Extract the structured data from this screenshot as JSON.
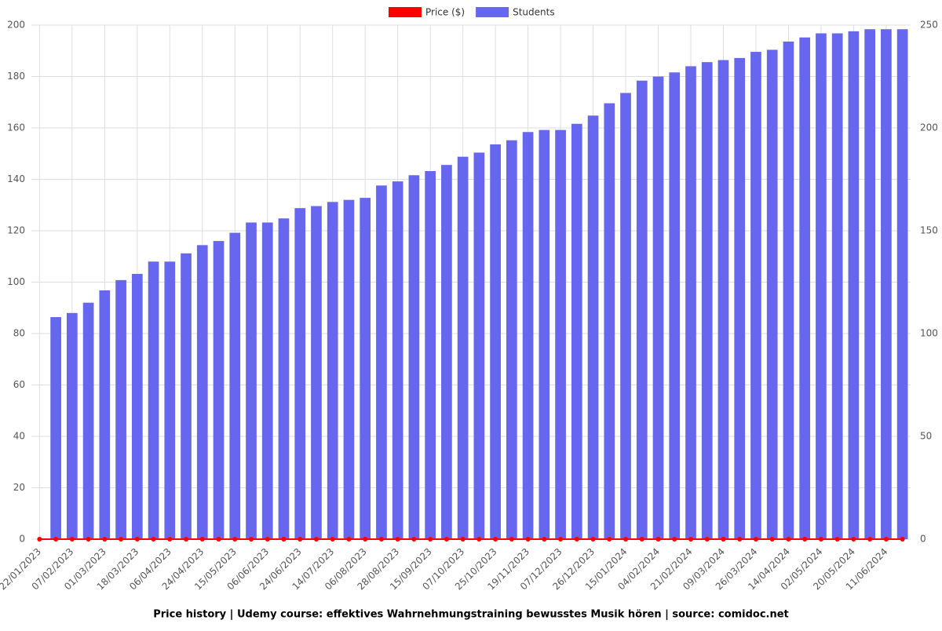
{
  "chart_data": {
    "type": "bar-line",
    "title": "Price history | Udemy course: effektives Wahrnehmungstraining bewusstes Musik hören | source: comidoc.net",
    "categories": [
      "22/01/2023",
      null,
      "07/02/2023",
      null,
      "01/03/2023",
      null,
      "18/03/2023",
      null,
      "06/04/2023",
      null,
      "24/04/2023",
      null,
      "15/05/2023",
      null,
      "06/06/2023",
      null,
      "24/06/2023",
      null,
      "14/07/2023",
      null,
      "06/08/2023",
      null,
      "28/08/2023",
      null,
      "15/09/2023",
      null,
      "07/10/2023",
      null,
      "25/10/2023",
      null,
      "19/11/2023",
      null,
      "07/12/2023",
      null,
      "26/12/2023",
      null,
      "15/01/2024",
      null,
      "04/02/2024",
      null,
      "21/02/2024",
      null,
      "09/03/2024",
      null,
      "26/03/2024",
      null,
      "14/04/2024",
      null,
      "02/05/2024",
      null,
      "20/05/2024",
      null,
      "11/06/2024",
      null
    ],
    "series": [
      {
        "name": "Price ($)",
        "color": "#ff0000",
        "kind": "line",
        "axis": "y",
        "values": [
          0,
          0,
          0,
          0,
          0,
          0,
          0,
          0,
          0,
          0,
          0,
          0,
          0,
          0,
          0,
          0,
          0,
          0,
          0,
          0,
          0,
          0,
          0,
          0,
          0,
          0,
          0,
          0,
          0,
          0,
          0,
          0,
          0,
          0,
          0,
          0,
          0,
          0,
          0,
          0,
          0,
          0,
          0,
          0,
          0,
          0,
          0,
          0,
          0,
          0,
          0,
          0,
          0,
          0
        ]
      },
      {
        "name": "Students",
        "color": "#6666ee",
        "kind": "bar",
        "axis": "y2",
        "values": [
          null,
          108,
          110,
          115,
          121,
          126,
          129,
          135,
          135,
          139,
          143,
          145,
          149,
          154,
          154,
          156,
          161,
          162,
          164,
          165,
          166,
          172,
          174,
          177,
          179,
          182,
          186,
          188,
          192,
          194,
          198,
          199,
          199,
          202,
          206,
          212,
          217,
          223,
          225,
          227,
          230,
          232,
          233,
          234,
          237,
          238,
          242,
          244,
          246,
          246,
          247,
          248,
          248,
          248
        ]
      }
    ],
    "ylim": [
      0,
      200
    ],
    "yticks": [
      0,
      20,
      40,
      60,
      80,
      100,
      120,
      140,
      160,
      180,
      200
    ],
    "y2lim": [
      0,
      250
    ],
    "y2ticks": [
      0,
      50,
      100,
      150,
      200,
      250
    ],
    "grid": true,
    "legend": "top"
  }
}
